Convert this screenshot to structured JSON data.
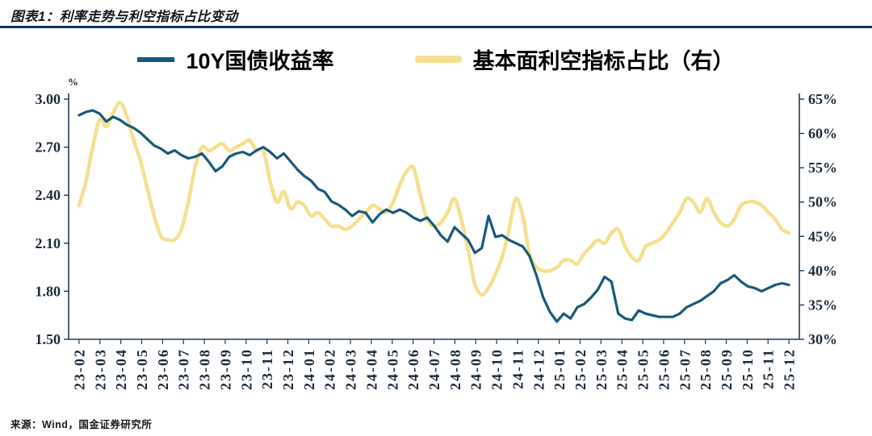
{
  "header": {
    "title": "图表1：利率走势与利空指标占比变动"
  },
  "footer": {
    "source": "来源：Wind，国金证券研究所"
  },
  "colors": {
    "blue": "#175a7d",
    "yellow": "#f6df8e",
    "rule": "#16365f",
    "axis_text": "#1a2b3c",
    "axis_line": "#1f3b57"
  },
  "chart_data": {
    "type": "line",
    "title": "利率走势与利空指标占比变动",
    "grid": false,
    "legend_position": "top",
    "axis_color": "#1a2b3c",
    "axis_line_color": "#1f3b57",
    "categories": [
      "23-02",
      "23-03",
      "23-04",
      "23-05",
      "23-06",
      "23-07",
      "23-08",
      "23-09",
      "23-10",
      "23-11",
      "23-12",
      "24-01",
      "24-02",
      "24-03",
      "24-04",
      "24-05",
      "24-06",
      "24-07",
      "24-08",
      "24-09",
      "24-10",
      "24-11",
      "24-12",
      "25-01",
      "25-02",
      "25-03",
      "25-04",
      "25-05",
      "25-06",
      "25-07",
      "25-08",
      "25-09",
      "25-10",
      "25-11",
      "25-12"
    ],
    "left_axis": {
      "unit": "%",
      "min": 1.5,
      "max": 3.0,
      "ticks": [
        {
          "label": "3.00",
          "value": 3.0
        },
        {
          "label": "2.70",
          "value": 2.7
        },
        {
          "label": "2.40",
          "value": 2.4
        },
        {
          "label": "2.10",
          "value": 2.1
        },
        {
          "label": "1.80",
          "value": 1.8
        },
        {
          "label": "1.50",
          "value": 1.5
        }
      ]
    },
    "right_axis": {
      "min": 30,
      "max": 65,
      "ticks": [
        {
          "label": "65%",
          "value": 65
        },
        {
          "label": "60%",
          "value": 60
        },
        {
          "label": "55%",
          "value": 55
        },
        {
          "label": "50%",
          "value": 50
        },
        {
          "label": "45%",
          "value": 45
        },
        {
          "label": "40%",
          "value": 40
        },
        {
          "label": "35%",
          "value": 35
        },
        {
          "label": "30%",
          "value": 30
        }
      ]
    },
    "series": [
      {
        "name": "10Y国债收益率",
        "axis": "left",
        "color": "#175a7d",
        "width": 3.2,
        "smooth": false,
        "values": [
          2.9,
          2.92,
          2.93,
          2.91,
          2.86,
          2.89,
          2.87,
          2.84,
          2.82,
          2.79,
          2.75,
          2.71,
          2.69,
          2.66,
          2.68,
          2.65,
          2.63,
          2.64,
          2.66,
          2.61,
          2.55,
          2.58,
          2.64,
          2.66,
          2.67,
          2.65,
          2.68,
          2.7,
          2.67,
          2.63,
          2.66,
          2.61,
          2.56,
          2.52,
          2.49,
          2.44,
          2.42,
          2.36,
          2.34,
          2.31,
          2.27,
          2.3,
          2.29,
          2.23,
          2.28,
          2.31,
          2.29,
          2.31,
          2.29,
          2.26,
          2.24,
          2.26,
          2.21,
          2.15,
          2.11,
          2.2,
          2.16,
          2.12,
          2.04,
          2.07,
          2.27,
          2.14,
          2.15,
          2.12,
          2.1,
          2.08,
          2.02,
          1.9,
          1.76,
          1.67,
          1.61,
          1.66,
          1.63,
          1.7,
          1.72,
          1.76,
          1.81,
          1.89,
          1.86,
          1.66,
          1.63,
          1.62,
          1.68,
          1.66,
          1.65,
          1.64,
          1.64,
          1.64,
          1.66,
          1.7,
          1.72,
          1.74,
          1.77,
          1.8,
          1.85,
          1.87,
          1.9,
          1.86,
          1.83,
          1.82,
          1.8,
          1.82,
          1.84,
          1.85,
          1.84
        ]
      },
      {
        "name": "基本面利空指标占比（右）",
        "axis": "right",
        "color": "#f6df8e",
        "width": 4.5,
        "smooth": true,
        "values": [
          49.5,
          53,
          58,
          62,
          61,
          63,
          64.5,
          62.5,
          59,
          56,
          52,
          48,
          45,
          44.5,
          44.5,
          46,
          50,
          55,
          58,
          57.5,
          58,
          58.5,
          57.5,
          58,
          58.5,
          59,
          57.5,
          57.5,
          53,
          50,
          51.5,
          49,
          50,
          49.5,
          48,
          48.5,
          47.5,
          46.5,
          46.5,
          46,
          46.5,
          47.5,
          48.5,
          49.5,
          49,
          48.5,
          50,
          52.5,
          54.5,
          55,
          51,
          47.5,
          46.5,
          47,
          48.5,
          50.5,
          47.5,
          43,
          38,
          36.5,
          37.5,
          39.5,
          42,
          46,
          50.5,
          48,
          42.5,
          40.5,
          40,
          40,
          40.5,
          41.5,
          41.5,
          41,
          42.5,
          43.5,
          44.5,
          44,
          45.5,
          46,
          43.5,
          42,
          41.5,
          43.5,
          44,
          44.5,
          45.5,
          47,
          48.5,
          50.5,
          50,
          48.5,
          50.5,
          48.5,
          47,
          46.5,
          47.5,
          49.5,
          50,
          50,
          49.5,
          48.5,
          47.5,
          46,
          45.5
        ]
      }
    ]
  }
}
